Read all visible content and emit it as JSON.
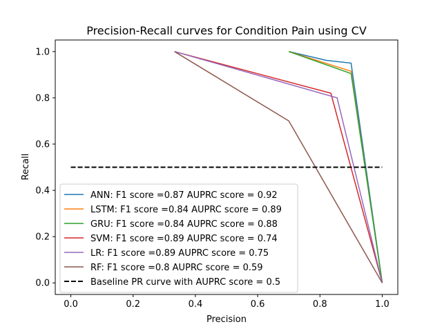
{
  "chart_data": {
    "type": "line",
    "title": "Precision-Recall curves for Condition Pain using CV",
    "xlabel": "Precision",
    "ylabel": "Recall",
    "xlim": [
      -0.05,
      1.05
    ],
    "ylim": [
      -0.05,
      1.05
    ],
    "xticks": [
      0.0,
      0.2,
      0.4,
      0.6,
      0.8,
      1.0
    ],
    "xtick_labels": [
      "0.0",
      "0.2",
      "0.4",
      "0.6",
      "0.8",
      "1.0"
    ],
    "yticks": [
      0.0,
      0.2,
      0.4,
      0.6,
      0.8,
      1.0
    ],
    "ytick_labels": [
      "0.0",
      "0.2",
      "0.4",
      "0.6",
      "0.8",
      "1.0"
    ],
    "grid": false,
    "legend_position": "lower-left",
    "series": [
      {
        "name": "ANN: F1 score =0.87 AUPRC score = 0.92",
        "color": "#1f77b4",
        "dash": "solid",
        "x": [
          0.7,
          0.82,
          0.9,
          1.0
        ],
        "y": [
          1.0,
          0.962,
          0.95,
          0.0
        ]
      },
      {
        "name": "LSTM: F1 score =0.84 AUPRC score = 0.89",
        "color": "#ff7f0e",
        "dash": "solid",
        "x": [
          0.7,
          0.9,
          1.0
        ],
        "y": [
          1.0,
          0.915,
          0.0
        ]
      },
      {
        "name": "GRU: F1 score =0.84 AUPRC score = 0.88",
        "color": "#2ca02c",
        "dash": "solid",
        "x": [
          0.7,
          0.9,
          1.0
        ],
        "y": [
          1.0,
          0.905,
          0.0
        ]
      },
      {
        "name": "SVM: F1 score =0.89 AUPRC score = 0.74",
        "color": "#d62728",
        "dash": "solid",
        "x": [
          0.333,
          0.835,
          1.0
        ],
        "y": [
          1.0,
          0.82,
          0.0
        ]
      },
      {
        "name": "LR: F1 score =0.89 AUPRC score = 0.75",
        "color": "#9467bd",
        "dash": "solid",
        "x": [
          0.333,
          0.855,
          1.0
        ],
        "y": [
          1.0,
          0.8,
          0.0
        ]
      },
      {
        "name": "RF: F1 score =0.8 AUPRC score = 0.59",
        "color": "#8c564b",
        "dash": "solid",
        "x": [
          0.333,
          0.7,
          1.0
        ],
        "y": [
          1.0,
          0.7,
          0.0
        ]
      },
      {
        "name": "Baseline PR curve with AUPRC score = 0.5",
        "color": "#000000",
        "dash": "dashed",
        "x": [
          0.0,
          1.0
        ],
        "y": [
          0.5,
          0.5
        ]
      }
    ]
  }
}
